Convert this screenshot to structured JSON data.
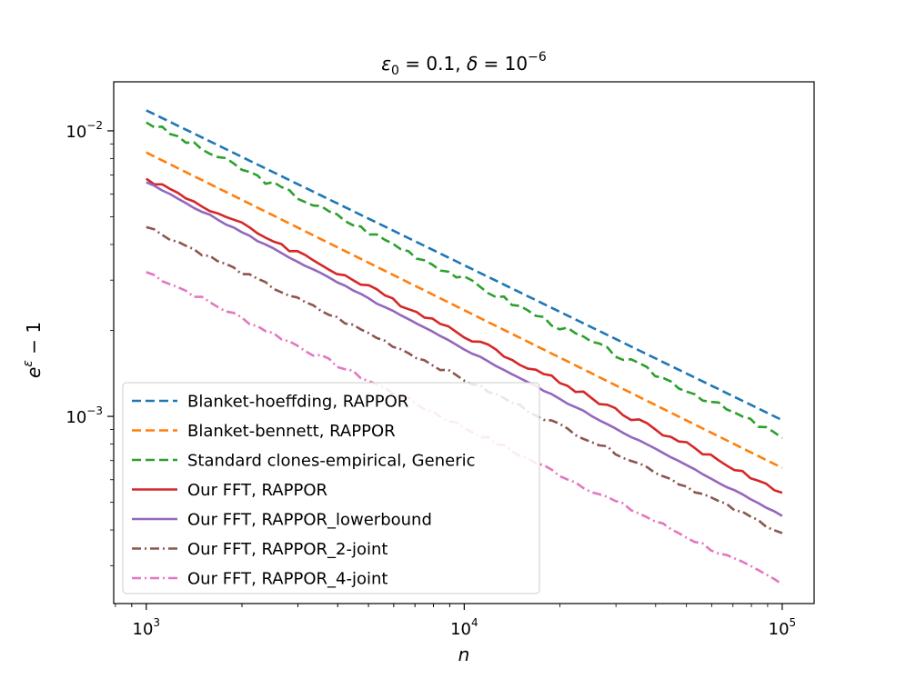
{
  "chart_data": {
    "type": "line",
    "title_parts": {
      "eps": "ε",
      "eps_sub": "0",
      "mid": " = 0.1, ",
      "delta": "δ",
      "eq": " = 10",
      "delta_exp": "−6"
    },
    "xlabel": "n",
    "ylabel": {
      "base": "e",
      "exp": "ε",
      "rest": " − 1"
    },
    "xscale": "log",
    "yscale": "log",
    "xlim": [
      790,
      126000
    ],
    "ylim": [
      0.000221,
      0.01485
    ],
    "grid": false,
    "legend_position": "lower-left",
    "x_ticks": [
      {
        "value": 1000,
        "base": "10",
        "exp": "3"
      },
      {
        "value": 10000,
        "base": "10",
        "exp": "4"
      },
      {
        "value": 100000,
        "base": "10",
        "exp": "5"
      }
    ],
    "y_ticks": [
      {
        "value": 0.001,
        "base": "10",
        "exp": "−3"
      },
      {
        "value": 0.01,
        "base": "10",
        "exp": "−2"
      }
    ],
    "series": [
      {
        "name": "Blanket-hoeffding, RAPPOR",
        "color": "#1f77b4",
        "dash": "dashed",
        "y_start": 0.0118,
        "y_end": 0.00097,
        "jitter": 0.0,
        "seed": 1
      },
      {
        "name": "Blanket-bennett, RAPPOR",
        "color": "#ff7f0e",
        "dash": "dashed",
        "y_start": 0.0084,
        "y_end": 0.00066,
        "jitter": 0.0,
        "seed": 2
      },
      {
        "name": "Standard clones-empirical, Generic",
        "color": "#2ca02c",
        "dash": "dashed",
        "y_start": 0.0107,
        "y_end": 0.00084,
        "jitter": 0.045,
        "seed": 3
      },
      {
        "name": "Our FFT, RAPPOR",
        "color": "#d62728",
        "dash": "solid",
        "y_start": 0.0068,
        "y_end": 0.00054,
        "jitter": 0.04,
        "seed": 4
      },
      {
        "name": "Our FFT, RAPPOR_lowerbound",
        "color": "#9467bd",
        "dash": "solid",
        "y_start": 0.0066,
        "y_end": 0.000448,
        "jitter": 0.012,
        "seed": 5
      },
      {
        "name": "Our FFT, RAPPOR_2-joint",
        "color": "#8c564b",
        "dash": "dashdot",
        "y_start": 0.0046,
        "y_end": 0.00039,
        "jitter": 0.03,
        "seed": 6
      },
      {
        "name": "Our FFT, RAPPOR_4-joint",
        "color": "#e377c2",
        "dash": "dashdot",
        "y_start": 0.0032,
        "y_end": 0.000258,
        "jitter": 0.035,
        "seed": 7
      }
    ]
  }
}
